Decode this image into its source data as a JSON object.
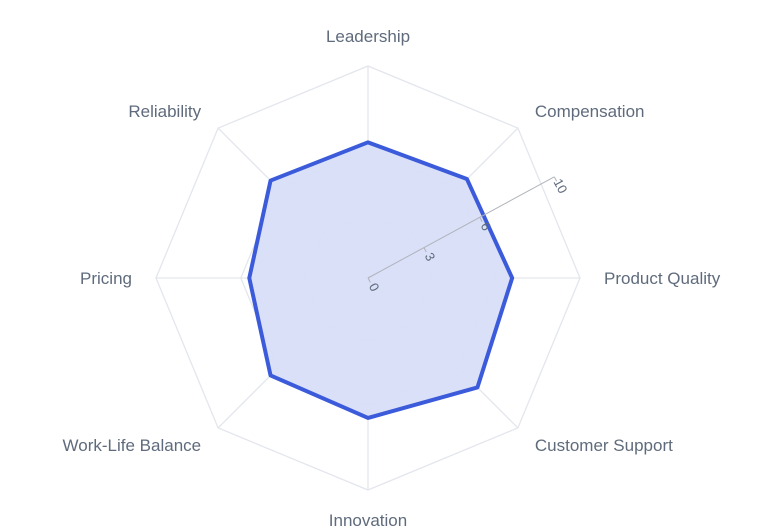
{
  "chart_data": {
    "type": "radar",
    "axes": [
      "Leadership",
      "Compensation",
      "Product Quality",
      "Customer Support",
      "Innovation",
      "Work-Life Balance",
      "Pricing",
      "Reliability"
    ],
    "series": [
      {
        "values": [
          6.4,
          6.6,
          6.8,
          7.3,
          6.6,
          6.5,
          5.6,
          6.5
        ],
        "line_color": "#3b5bdb",
        "fill_color": "#d8def8"
      }
    ],
    "radial_range": [
      0,
      10
    ],
    "radial_ticks": [
      "0",
      "3",
      "6",
      "10"
    ],
    "radial_tick_values": [
      0,
      3,
      6,
      10
    ],
    "radial_axis_angle_deg": 22.5,
    "grid_levels": [
      3,
      6,
      10
    ],
    "grid_shape": "polygon",
    "grid_color": "#e3e6ec",
    "label_color": "#5f6b7c"
  }
}
